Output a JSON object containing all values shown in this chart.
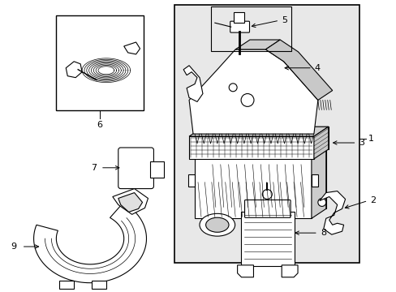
{
  "background_color": "#ffffff",
  "shade_color": "#e8e8e8",
  "line_color": "#000000",
  "fig_width": 4.89,
  "fig_height": 3.6,
  "dpi": 100
}
